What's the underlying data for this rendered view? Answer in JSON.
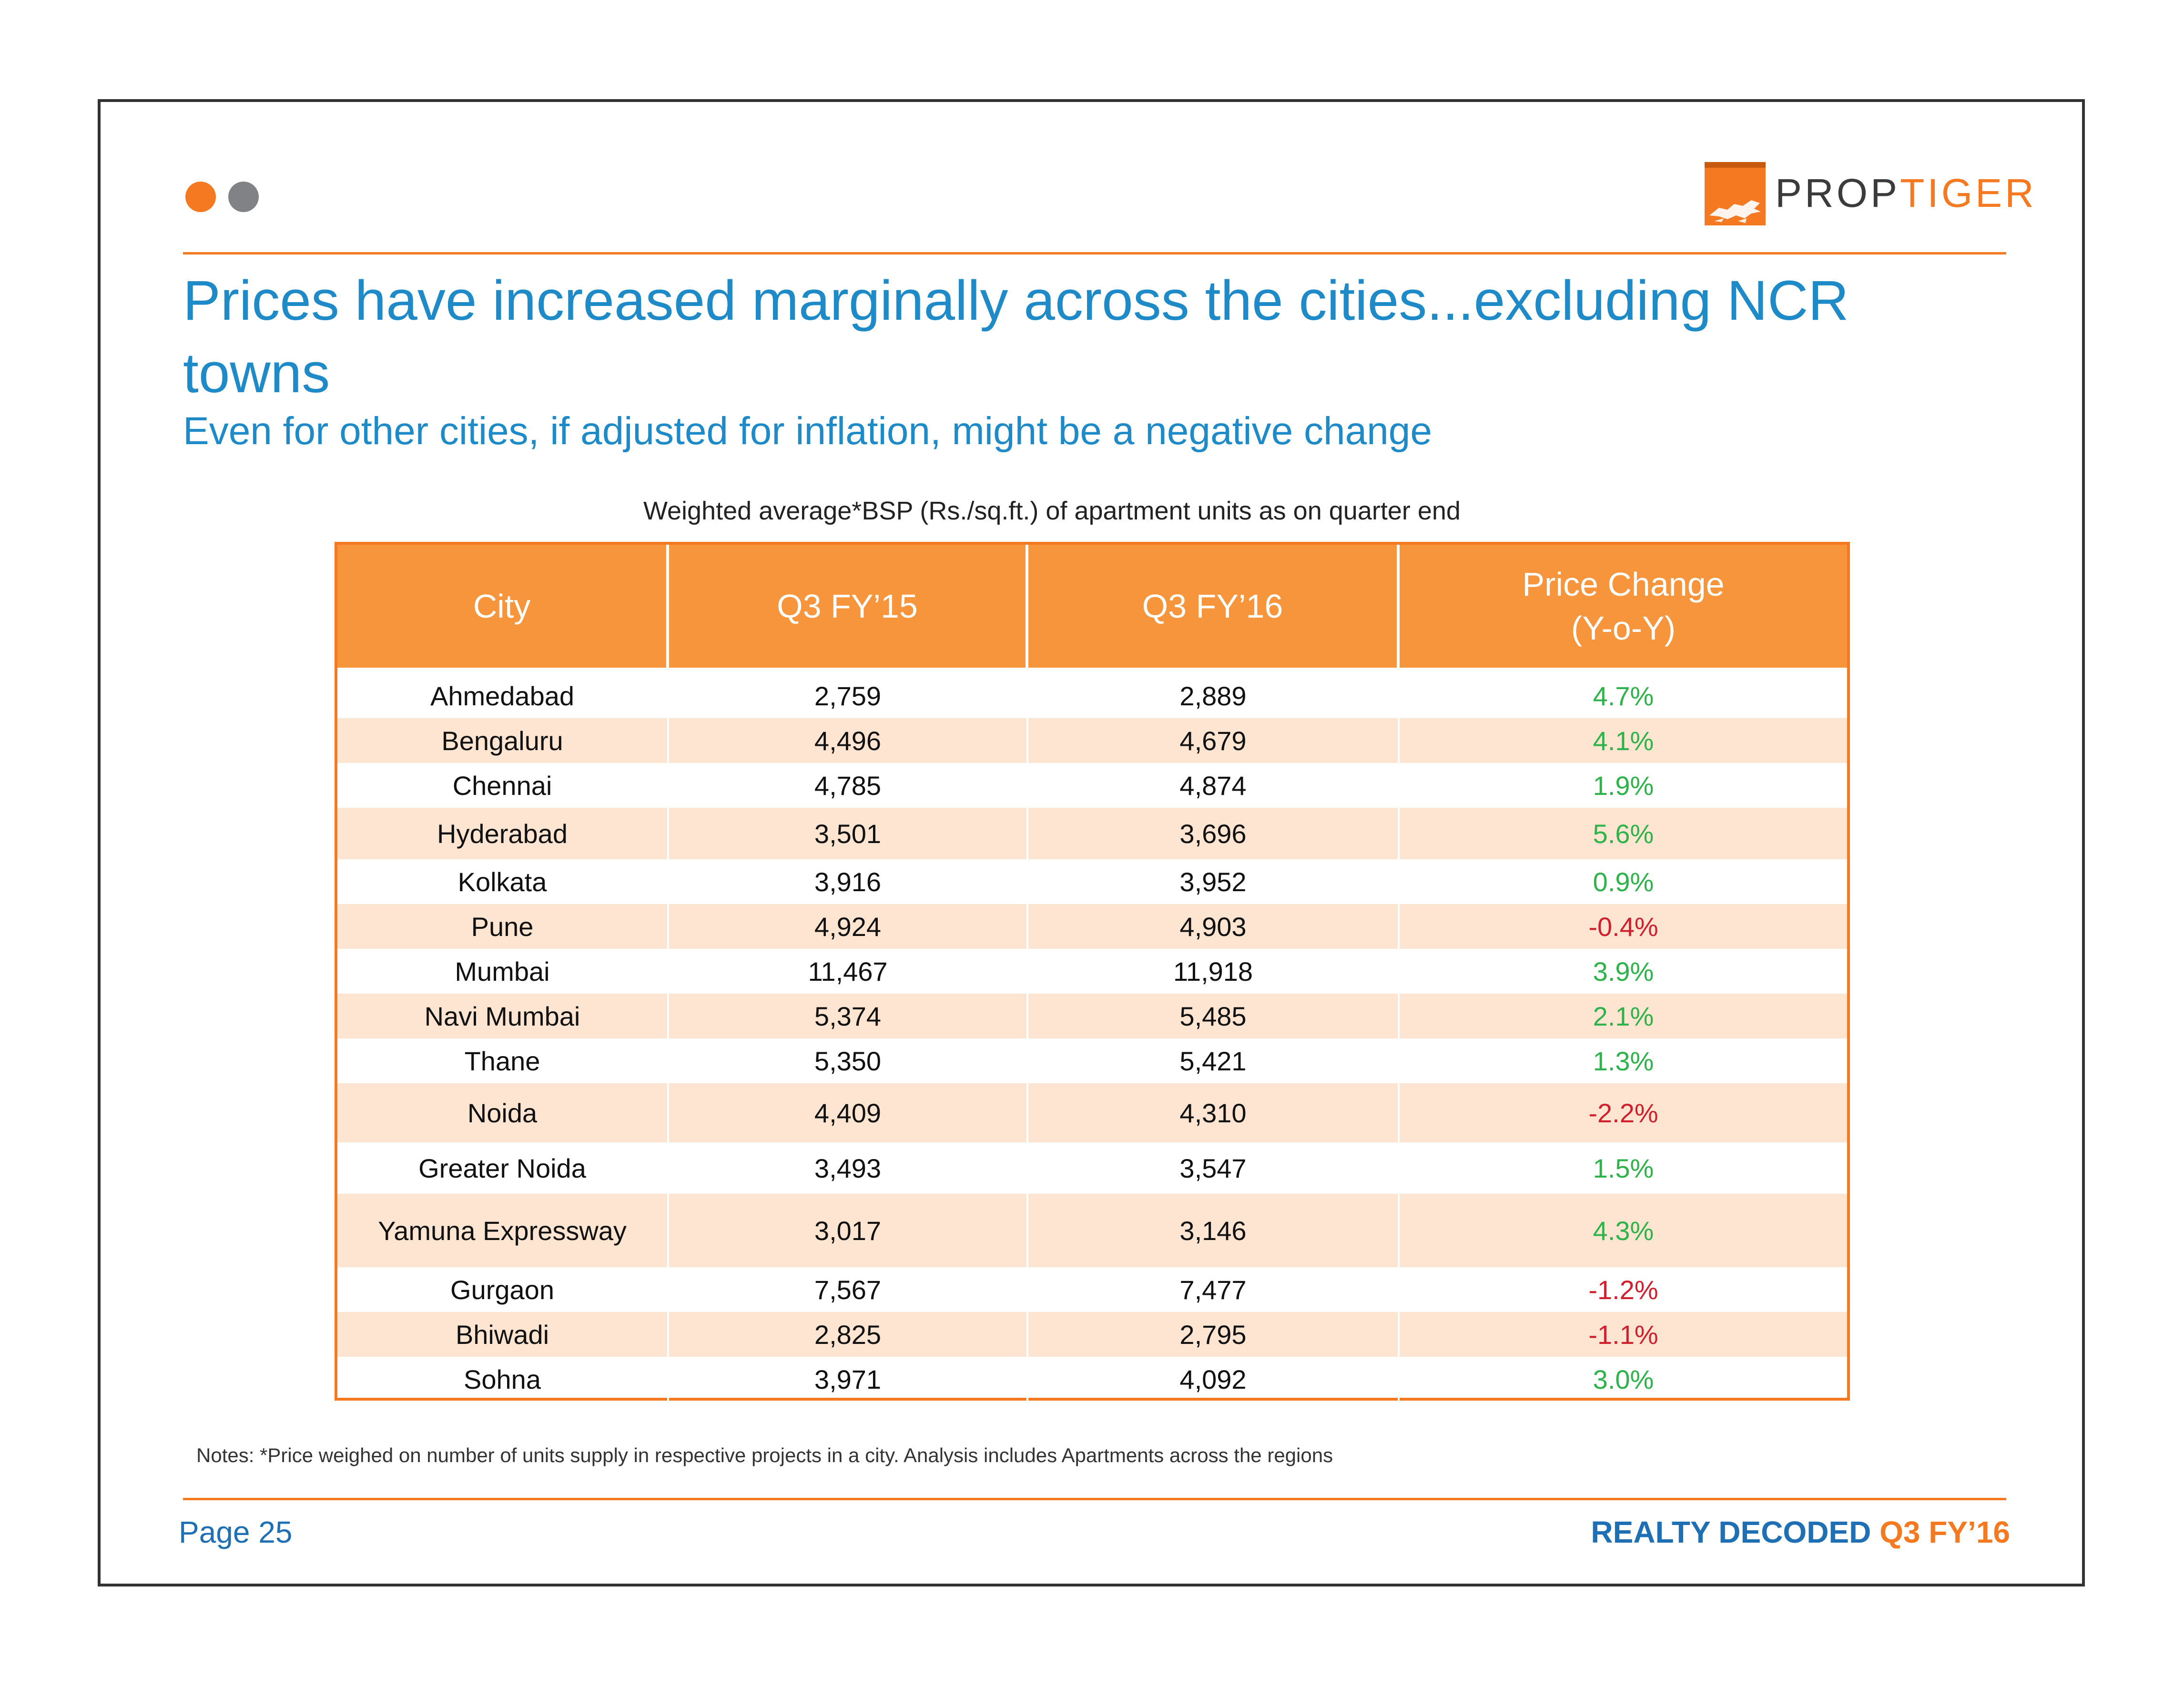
{
  "brand": {
    "logo_prop": "PROP",
    "logo_tiger": "TIGER",
    "orange": "#f47920",
    "blue": "#1e8bc8"
  },
  "header": {
    "title": "Prices have increased marginally across the cities...excluding NCR towns",
    "subtitle": "Even for other cities, if adjusted for inflation, might be a negative change"
  },
  "table": {
    "caption": "Weighted average*BSP (Rs./sq.ft.) of apartment units as on quarter end",
    "headers": {
      "city": "City",
      "q3fy15": "Q3 FY’15",
      "q3fy16": "Q3 FY’16",
      "change_line1": "Price Change",
      "change_line2": "(Y-o-Y)"
    },
    "rows": [
      {
        "city": "Ahmedabad",
        "q3fy15": "2,759",
        "q3fy16": "2,889",
        "change": "4.7%"
      },
      {
        "city": "Bengaluru",
        "q3fy15": "4,496",
        "q3fy16": "4,679",
        "change": "4.1%"
      },
      {
        "city": "Chennai",
        "q3fy15": "4,785",
        "q3fy16": "4,874",
        "change": "1.9%"
      },
      {
        "city": "Hyderabad",
        "q3fy15": "3,501",
        "q3fy16": "3,696",
        "change": "5.6%"
      },
      {
        "city": "Kolkata",
        "q3fy15": "3,916",
        "q3fy16": "3,952",
        "change": "0.9%"
      },
      {
        "city": "Pune",
        "q3fy15": "4,924",
        "q3fy16": "4,903",
        "change": "-0.4%"
      },
      {
        "city": "Mumbai",
        "q3fy15": "11,467",
        "q3fy16": "11,918",
        "change": "3.9%"
      },
      {
        "city": "Navi Mumbai",
        "q3fy15": "5,374",
        "q3fy16": "5,485",
        "change": "2.1%"
      },
      {
        "city": "Thane",
        "q3fy15": "5,350",
        "q3fy16": "5,421",
        "change": "1.3%"
      },
      {
        "city": "Noida",
        "q3fy15": "4,409",
        "q3fy16": "4,310",
        "change": "-2.2%"
      },
      {
        "city": "Greater Noida",
        "q3fy15": "3,493",
        "q3fy16": "3,547",
        "change": "1.5%"
      },
      {
        "city": "Yamuna Expressway",
        "q3fy15": "3,017",
        "q3fy16": "3,146",
        "change": "4.3%"
      },
      {
        "city": "Gurgaon",
        "q3fy15": "7,567",
        "q3fy16": "7,477",
        "change": "-1.2%"
      },
      {
        "city": "Bhiwadi",
        "q3fy15": "2,825",
        "q3fy16": "2,795",
        "change": "-1.1%"
      },
      {
        "city": "Sohna",
        "q3fy15": "3,971",
        "q3fy16": "4,092",
        "change": "3.0%"
      }
    ]
  },
  "notes": "Notes: *Price weighed on number of units supply in respective projects in a city. Analysis includes Apartments across the regions",
  "footer": {
    "page": "Page 25",
    "report": "REALTY DECODED",
    "edition": "Q3 FY’16"
  }
}
